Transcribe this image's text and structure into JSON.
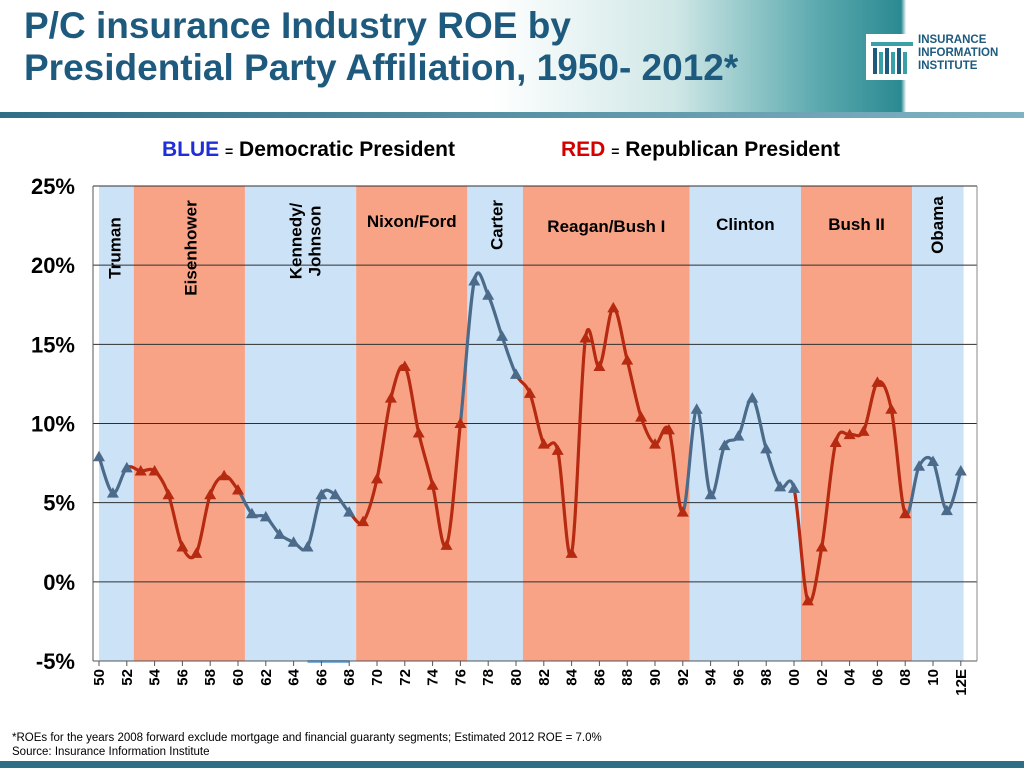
{
  "slide": {
    "title_line1": "P/C insurance Industry ROE by",
    "title_line2": "Presidential Party Affiliation, 1950- 2012*",
    "logo_lines": [
      "INSURANCE",
      "INFORMATION",
      "INSTITUTE"
    ],
    "footnote_line1": "*ROEs for the years 2008 forward exclude mortgage and financial guaranty segments; Estimated 2012 ROE = 7.0%",
    "footnote_line2": "Source: Insurance Information Institute"
  },
  "legend": {
    "blue_key": "BLUE",
    "blue_eq": "=",
    "blue_desc": "Democratic President",
    "red_key": "RED",
    "red_eq": "=",
    "red_desc": "Republican President"
  },
  "colors": {
    "title": "#1d5a7e",
    "democratic_band": "#cce3f7",
    "republican_band": "#f9a386",
    "democratic_line": "#4c6b8a",
    "republican_line": "#b52a10",
    "legend_blue": "#1f2fd8",
    "legend_red": "#d40000"
  },
  "chart_data": {
    "type": "line",
    "ylim": [
      -5,
      25
    ],
    "yticks": [
      -5,
      0,
      5,
      10,
      15,
      20,
      25
    ],
    "ytick_labels": [
      "-5%",
      "0%",
      "5%",
      "10%",
      "15%",
      "20%",
      "25%"
    ],
    "xlim": [
      1950,
      2012
    ],
    "xtick_labels": [
      "50",
      "52",
      "54",
      "56",
      "58",
      "60",
      "62",
      "64",
      "66",
      "68",
      "70",
      "72",
      "74",
      "76",
      "78",
      "80",
      "82",
      "84",
      "86",
      "88",
      "90",
      "92",
      "94",
      "96",
      "98",
      "00",
      "02",
      "04",
      "06",
      "08",
      "10",
      "12E"
    ],
    "grid": true,
    "presidencies": [
      {
        "name": "Truman",
        "party": "D",
        "start": 1950,
        "end": 1952.5
      },
      {
        "name": "Eisenhower",
        "party": "R",
        "start": 1952.5,
        "end": 1960.5
      },
      {
        "name": "Kennedy/ Johnson",
        "party": "D",
        "start": 1960.5,
        "end": 1968.5
      },
      {
        "name": "Nixon/Ford",
        "party": "R",
        "start": 1968.5,
        "end": 1976.5
      },
      {
        "name": "Carter",
        "party": "D",
        "start": 1976.5,
        "end": 1980.5
      },
      {
        "name": "Reagan/Bush I",
        "party": "R",
        "start": 1980.5,
        "end": 1992.5
      },
      {
        "name": "Clinton",
        "party": "D",
        "start": 1992.5,
        "end": 2000.5
      },
      {
        "name": "Bush II",
        "party": "R",
        "start": 2000.5,
        "end": 2008.5
      },
      {
        "name": "Obama",
        "party": "D",
        "start": 2008.5,
        "end": 2012.2
      }
    ],
    "series": [
      {
        "x": [
          1950,
          1951,
          1952,
          1953,
          1954,
          1955,
          1956,
          1957,
          1958,
          1959,
          1960,
          1961,
          1962,
          1963,
          1964,
          1965,
          1966,
          1967,
          1968,
          1969,
          1970,
          1971,
          1972,
          1973,
          1974,
          1975,
          1976,
          1977,
          1978,
          1979,
          1980,
          1981,
          1982,
          1983,
          1984,
          1985,
          1986,
          1987,
          1988,
          1989,
          1990,
          1991,
          1992,
          1993,
          1994,
          1995,
          1996,
          1997,
          1998,
          1999,
          2000,
          2001,
          2002,
          2003,
          2004,
          2005,
          2006,
          2007,
          2008,
          2009,
          2010,
          2011,
          2012
        ],
        "values": [
          7.9,
          5.6,
          7.2,
          7.0,
          7.0,
          5.5,
          2.2,
          1.8,
          5.5,
          6.7,
          5.8,
          4.3,
          4.1,
          3.0,
          2.5,
          2.2,
          5.5,
          5.5,
          4.4,
          3.8,
          6.5,
          11.6,
          13.6,
          9.4,
          6.1,
          2.3,
          10.0,
          19.0,
          18.1,
          15.5,
          13.1,
          11.9,
          8.7,
          8.3,
          1.8,
          15.4,
          13.6,
          17.3,
          14.0,
          10.4,
          8.7,
          9.6,
          4.4,
          10.9,
          5.5,
          8.6,
          9.2,
          11.6,
          8.4,
          6.0,
          5.9,
          -1.2,
          2.2,
          8.8,
          9.3,
          9.5,
          12.6,
          10.9,
          4.3,
          7.3,
          7.6,
          4.5,
          7.0
        ]
      }
    ]
  }
}
